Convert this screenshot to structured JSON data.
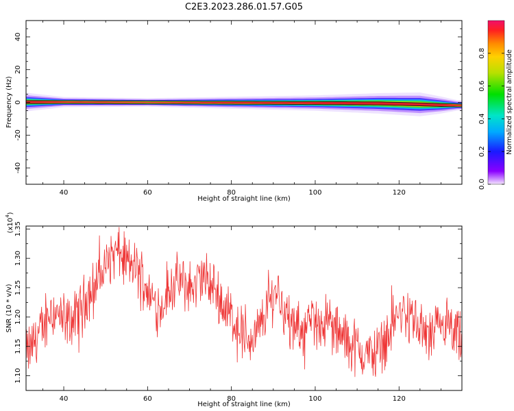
{
  "title": "C2E3.2023.286.01.57.G05",
  "colors": {
    "snr_line": "#ee3333",
    "axis": "#000000",
    "spectrogram_core": "#e0202a"
  },
  "chart_data": [
    {
      "type": "heatmap",
      "name": "spectrogram",
      "xlabel": "Height of straight line (km)",
      "ylabel": "Frequency (Hz)",
      "xlim": [
        31,
        135
      ],
      "ylim": [
        -50,
        50
      ],
      "xticks": [
        40,
        60,
        80,
        100,
        120
      ],
      "yticks": [
        -40,
        -20,
        0,
        20,
        40
      ],
      "colorbar": {
        "label": "Normalized spectral amplitude",
        "range": [
          0.0,
          1.0
        ],
        "ticks": [
          "0.0",
          "0.2",
          "0.4",
          "0.6",
          "0.8"
        ]
      },
      "ridge": {
        "x": [
          31,
          40,
          60,
          80,
          100,
          115,
          125,
          130,
          134
        ],
        "freq": [
          0.2,
          0.2,
          0.0,
          -0.2,
          -0.4,
          -0.6,
          -1.2,
          -1.6,
          -1.8
        ],
        "halfwidth": [
          2.2,
          1.2,
          1.0,
          1.4,
          1.8,
          2.4,
          2.8,
          2.0,
          1.2
        ]
      }
    },
    {
      "type": "line",
      "name": "snr",
      "xlabel": "Height of straight line (km)",
      "ylabel": "SNR (10 * v/v)",
      "y_multiplier": "(x10",
      "y_multiplier_exp": "4",
      "y_multiplier_close": ")",
      "xlim": [
        31,
        135
      ],
      "ylim": [
        1.075,
        1.355
      ],
      "xticks": [
        40,
        60,
        80,
        100,
        120
      ],
      "yticks": [
        "1.10",
        "1.15",
        "1.20",
        "1.25",
        "1.30",
        "1.35"
      ],
      "series": [
        {
          "x": [
            31,
            33,
            35,
            37,
            39,
            41,
            43,
            45,
            47,
            49,
            51,
            53,
            55,
            57,
            59,
            61,
            63,
            65,
            67,
            69,
            71,
            73,
            75,
            77,
            79,
            81,
            83,
            85,
            87,
            89,
            91,
            93,
            95,
            97,
            99,
            101,
            103,
            105,
            107,
            109,
            111,
            113,
            115,
            117,
            119,
            121,
            123,
            125,
            127,
            129,
            131,
            133,
            135
          ],
          "values": [
            1.135,
            1.16,
            1.18,
            1.215,
            1.2,
            1.19,
            1.2,
            1.23,
            1.25,
            1.275,
            1.3,
            1.31,
            1.29,
            1.285,
            1.265,
            1.23,
            1.215,
            1.245,
            1.26,
            1.255,
            1.25,
            1.27,
            1.255,
            1.235,
            1.215,
            1.19,
            1.17,
            1.16,
            1.185,
            1.225,
            1.25,
            1.205,
            1.175,
            1.18,
            1.19,
            1.195,
            1.19,
            1.175,
            1.165,
            1.15,
            1.14,
            1.135,
            1.145,
            1.165,
            1.2,
            1.205,
            1.2,
            1.18,
            1.165,
            1.175,
            1.185,
            1.165,
            1.15
          ]
        }
      ]
    }
  ]
}
